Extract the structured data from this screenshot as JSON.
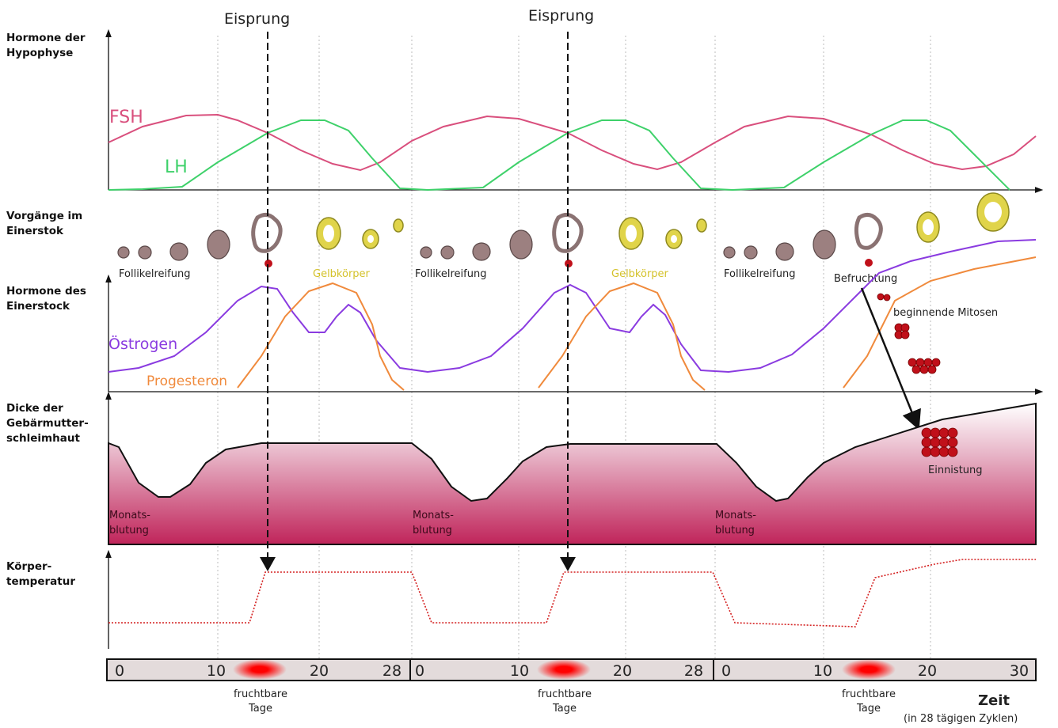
{
  "ovulation": [
    "Eisprung",
    "Eisprung"
  ],
  "row_labels": {
    "pituitary": [
      "Hormone der",
      "Hypophyse"
    ],
    "ovary_events": [
      "Vorgänge im",
      "Einerstok"
    ],
    "ovary_hormones": [
      "Hormone des",
      "Einerstock"
    ],
    "endometrium": [
      "Dicke der",
      "Gebärmutter-",
      "schleimhaut"
    ],
    "temperature": [
      "Körper-",
      "temperatur"
    ]
  },
  "curves": {
    "fsh": "FSH",
    "lh": "LH",
    "estrogen": "Östrogen",
    "progesterone": "Progesteron"
  },
  "events": {
    "follicle_maturation": [
      "Follikelreifung",
      "Follikelreifung",
      "Follikelreifung"
    ],
    "corpus_luteum": [
      "Gelbkörper",
      "Gelbkörper"
    ],
    "fertilization": "Befruchtung",
    "mitoses": "beginnende Mitosen",
    "implantation": "Einnistung"
  },
  "menstruation": [
    [
      "Monats-",
      "blutung"
    ],
    [
      "Monats-",
      "blutung"
    ],
    [
      "Monats-",
      "blutung"
    ]
  ],
  "timeline": {
    "cycles": [
      [
        "0",
        "10",
        "20",
        "28"
      ],
      [
        "0",
        "10",
        "20",
        "28"
      ],
      [
        "0",
        "10",
        "20",
        "30"
      ]
    ],
    "fertile_days": [
      [
        "fruchtbare",
        "Tage"
      ],
      [
        "fruchtbare",
        "Tage"
      ],
      [
        "fruchtbare",
        "Tage"
      ]
    ],
    "axis_title": "Zeit",
    "axis_note": "(in 28 tägigen Zyklen)"
  }
}
